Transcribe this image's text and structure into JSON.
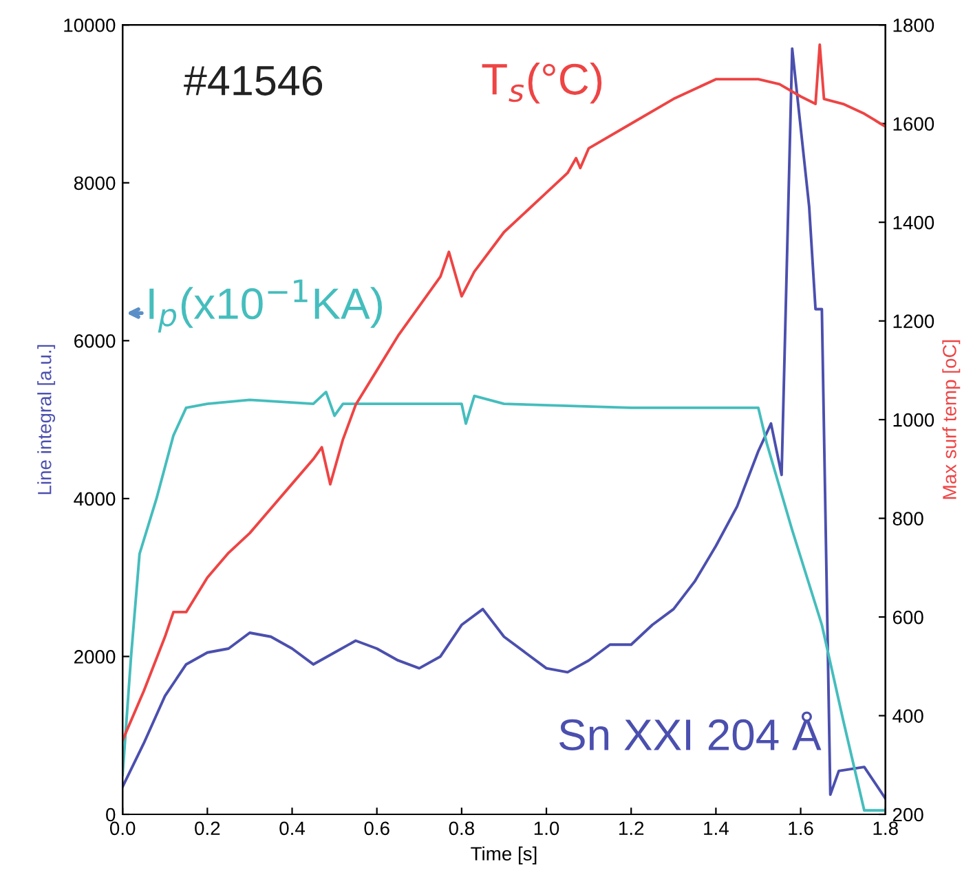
{
  "chart_data": {
    "type": "line",
    "xlabel": "Time [s]",
    "ylabel": "Line integral [a.u.]",
    "y2label": "Max surf temp [oC]",
    "annotations": [
      "#41546"
    ],
    "xlim": [
      0.0,
      1.8
    ],
    "xticks": [
      {
        "value": 0,
        "label": "0.0"
      },
      0.2,
      0.4,
      0.6,
      0.8,
      {
        "value": 1,
        "label": "1.0"
      },
      1.2,
      1.4,
      1.6,
      1.8
    ],
    "ylim": [
      0,
      10000
    ],
    "yticks": [
      0,
      2000,
      4000,
      6000,
      8000,
      10000
    ],
    "y2lim": [
      200,
      1800
    ],
    "y2ticks": [
      200,
      400,
      600,
      800,
      1000,
      1200,
      1400,
      1600,
      1800
    ],
    "grid": false,
    "legend": false,
    "series": [
      {
        "name": "Sn XXI 204 Å",
        "color": "#4b4fae",
        "x": [
          0.0,
          0.05,
          0.1,
          0.15,
          0.2,
          0.25,
          0.3,
          0.35,
          0.4,
          0.45,
          0.5,
          0.55,
          0.6,
          0.65,
          0.7,
          0.75,
          0.8,
          0.85,
          0.9,
          0.95,
          1.0,
          1.05,
          1.1,
          1.15,
          1.2,
          1.25,
          1.3,
          1.35,
          1.4,
          1.45,
          1.5,
          1.53,
          1.555,
          1.58,
          1.62,
          1.635,
          1.65,
          1.67,
          1.69,
          1.75,
          1.8
        ],
        "values": [
          350,
          900,
          1500,
          1900,
          2050,
          2100,
          2300,
          2250,
          2100,
          1900,
          2050,
          2200,
          2100,
          1950,
          1850,
          2000,
          2400,
          2600,
          2250,
          2050,
          1850,
          1800,
          1950,
          2150,
          2150,
          2400,
          2600,
          2950,
          3400,
          3900,
          4600,
          4950,
          4300,
          9700,
          7700,
          6400,
          6400,
          250,
          550,
          600,
          200
        ]
      },
      {
        "name": "I$_{p}$(x10$^{−1}$KA)",
        "color": "#45bdbd",
        "x": [
          0.0,
          0.02,
          0.04,
          0.08,
          0.12,
          0.15,
          0.2,
          0.3,
          0.45,
          0.48,
          0.5,
          0.52,
          0.8,
          0.81,
          0.83,
          0.9,
          1.2,
          1.5,
          1.52,
          1.58,
          1.65,
          1.7,
          1.75,
          1.8
        ],
        "values": [
          500,
          2000,
          3300,
          4000,
          4800,
          5150,
          5200,
          5250,
          5200,
          5350,
          5050,
          5200,
          5200,
          4950,
          5300,
          5200,
          5150,
          5150,
          4700,
          3600,
          2400,
          1200,
          50,
          50
        ]
      },
      {
        "name": "T$_{s}$(°C)",
        "color": "#ee4444",
        "axis": "y2",
        "x": [
          0.0,
          0.05,
          0.1,
          0.12,
          0.15,
          0.2,
          0.25,
          0.3,
          0.35,
          0.4,
          0.45,
          0.47,
          0.49,
          0.52,
          0.55,
          0.6,
          0.65,
          0.7,
          0.75,
          0.77,
          0.8,
          0.83,
          0.9,
          1.0,
          1.05,
          1.07,
          1.08,
          1.1,
          1.2,
          1.3,
          1.4,
          1.5,
          1.55,
          1.6,
          1.635,
          1.645,
          1.655,
          1.7,
          1.75,
          1.8
        ],
        "values": [
          350,
          450,
          560,
          610,
          610,
          680,
          730,
          770,
          820,
          870,
          920,
          944,
          869,
          960,
          1030,
          1100,
          1170,
          1230,
          1290,
          1340,
          1250,
          1300,
          1380,
          1460,
          1500,
          1530,
          1510,
          1550,
          1600,
          1650,
          1690,
          1690,
          1680,
          1655,
          1640,
          1760,
          1650,
          1640,
          1620,
          1594
        ]
      }
    ]
  }
}
